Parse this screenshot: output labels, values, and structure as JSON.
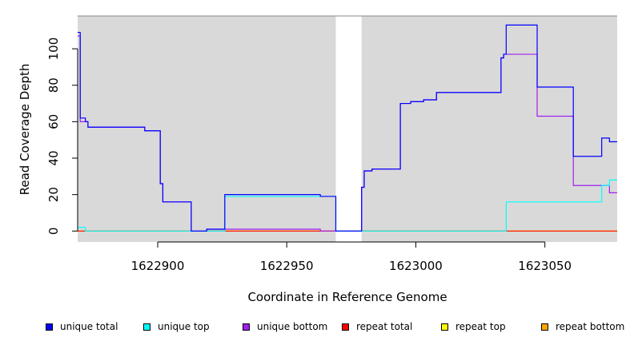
{
  "chart_data": {
    "type": "line",
    "xlabel": "Coordinate in Reference Genome",
    "ylabel": "Read Coverage Depth",
    "xlim": [
      1622869,
      1623078
    ],
    "ylim": [
      -6,
      118
    ],
    "x_ticks": [
      1622900,
      1622950,
      1623000,
      1623050
    ],
    "x_tick_labels": [
      "1622900",
      "1622950",
      "1623000",
      "1623050"
    ],
    "y_ticks": [
      0,
      20,
      40,
      60,
      80,
      100
    ],
    "y_tick_labels": [
      "0",
      "20",
      "40",
      "60",
      "80",
      "100"
    ],
    "background_color": "#d9d9d9",
    "gap": [
      1622969,
      1622979
    ],
    "grid": false,
    "legend_position": "bottom",
    "series": [
      {
        "name": "unique total",
        "color": "#0000ff",
        "steps": [
          [
            1622869,
            109
          ],
          [
            1622870,
            62
          ],
          [
            1622872,
            60
          ],
          [
            1622873,
            57
          ],
          [
            1622895,
            55
          ],
          [
            1622901,
            26
          ],
          [
            1622902,
            16
          ],
          [
            1622913,
            0
          ],
          [
            1622919,
            1
          ],
          [
            1622926,
            20
          ],
          [
            1622963,
            19
          ],
          [
            1622969,
            0
          ],
          [
            1622979,
            24
          ],
          [
            1622980,
            33
          ],
          [
            1622983,
            34
          ],
          [
            1622994,
            70
          ],
          [
            1622998,
            71
          ],
          [
            1623003,
            72
          ],
          [
            1623008,
            76
          ],
          [
            1623033,
            95
          ],
          [
            1623034,
            97
          ],
          [
            1623035,
            113
          ],
          [
            1623047,
            79
          ],
          [
            1623061,
            41
          ],
          [
            1623072,
            51
          ],
          [
            1623075,
            49
          ],
          [
            1623078,
            49
          ]
        ]
      },
      {
        "name": "unique top",
        "color": "#00ffff",
        "steps": [
          [
            1622869,
            2
          ],
          [
            1622872,
            0
          ],
          [
            1622926,
            19
          ],
          [
            1622963,
            19
          ],
          [
            1622969,
            0
          ],
          [
            1622979,
            0
          ],
          [
            1623035,
            16
          ],
          [
            1623072,
            25
          ],
          [
            1623075,
            28
          ],
          [
            1623078,
            28
          ]
        ]
      },
      {
        "name": "unique bottom",
        "color": "#a020f0",
        "steps": [
          [
            1622869,
            107
          ],
          [
            1622870,
            60
          ],
          [
            1622872,
            60
          ],
          [
            1622873,
            57
          ],
          [
            1622895,
            55
          ],
          [
            1622901,
            26
          ],
          [
            1622902,
            16
          ],
          [
            1622913,
            0
          ],
          [
            1622919,
            1
          ],
          [
            1622963,
            0
          ],
          [
            1622969,
            0
          ],
          [
            1622979,
            24
          ],
          [
            1622980,
            33
          ],
          [
            1622983,
            34
          ],
          [
            1622994,
            70
          ],
          [
            1622998,
            71
          ],
          [
            1623003,
            72
          ],
          [
            1623008,
            76
          ],
          [
            1623033,
            95
          ],
          [
            1623034,
            97
          ],
          [
            1623047,
            63
          ],
          [
            1623061,
            25
          ],
          [
            1623075,
            21
          ],
          [
            1623078,
            21
          ]
        ]
      },
      {
        "name": "repeat total",
        "color": "#ff0000",
        "steps": [
          [
            1622869,
            0
          ],
          [
            1623078,
            0
          ]
        ]
      },
      {
        "name": "repeat top",
        "color": "#ffff00",
        "steps": [
          [
            1622869,
            0
          ],
          [
            1623078,
            0
          ]
        ]
      },
      {
        "name": "repeat bottom",
        "color": "#ffa500",
        "steps": [
          [
            1622869,
            0
          ],
          [
            1623078,
            0
          ]
        ]
      }
    ]
  }
}
